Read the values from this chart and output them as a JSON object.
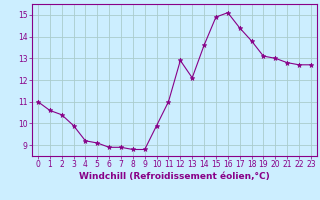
{
  "x": [
    0,
    1,
    2,
    3,
    4,
    5,
    6,
    7,
    8,
    9,
    10,
    11,
    12,
    13,
    14,
    15,
    16,
    17,
    18,
    19,
    20,
    21,
    22,
    23
  ],
  "y": [
    11.0,
    10.6,
    10.4,
    9.9,
    9.2,
    9.1,
    8.9,
    8.9,
    8.8,
    8.8,
    9.9,
    11.0,
    12.9,
    12.1,
    13.6,
    14.9,
    15.1,
    14.4,
    13.8,
    13.1,
    13.0,
    12.8,
    12.7,
    12.7
  ],
  "line_color": "#880088",
  "marker": "*",
  "marker_size": 3.5,
  "background_color": "#cceeff",
  "grid_color": "#aacccc",
  "xlabel": "Windchill (Refroidissement éolien,°C)",
  "ylabel": "",
  "title": "",
  "xlim": [
    -0.5,
    23.5
  ],
  "ylim": [
    8.5,
    15.5
  ],
  "yticks": [
    9,
    10,
    11,
    12,
    13,
    14,
    15
  ],
  "xticks": [
    0,
    1,
    2,
    3,
    4,
    5,
    6,
    7,
    8,
    9,
    10,
    11,
    12,
    13,
    14,
    15,
    16,
    17,
    18,
    19,
    20,
    21,
    22,
    23
  ],
  "tick_color": "#880088",
  "label_color": "#880088",
  "axis_color": "#880088",
  "fontsize_ticks": 5.5,
  "fontsize_label": 6.5
}
